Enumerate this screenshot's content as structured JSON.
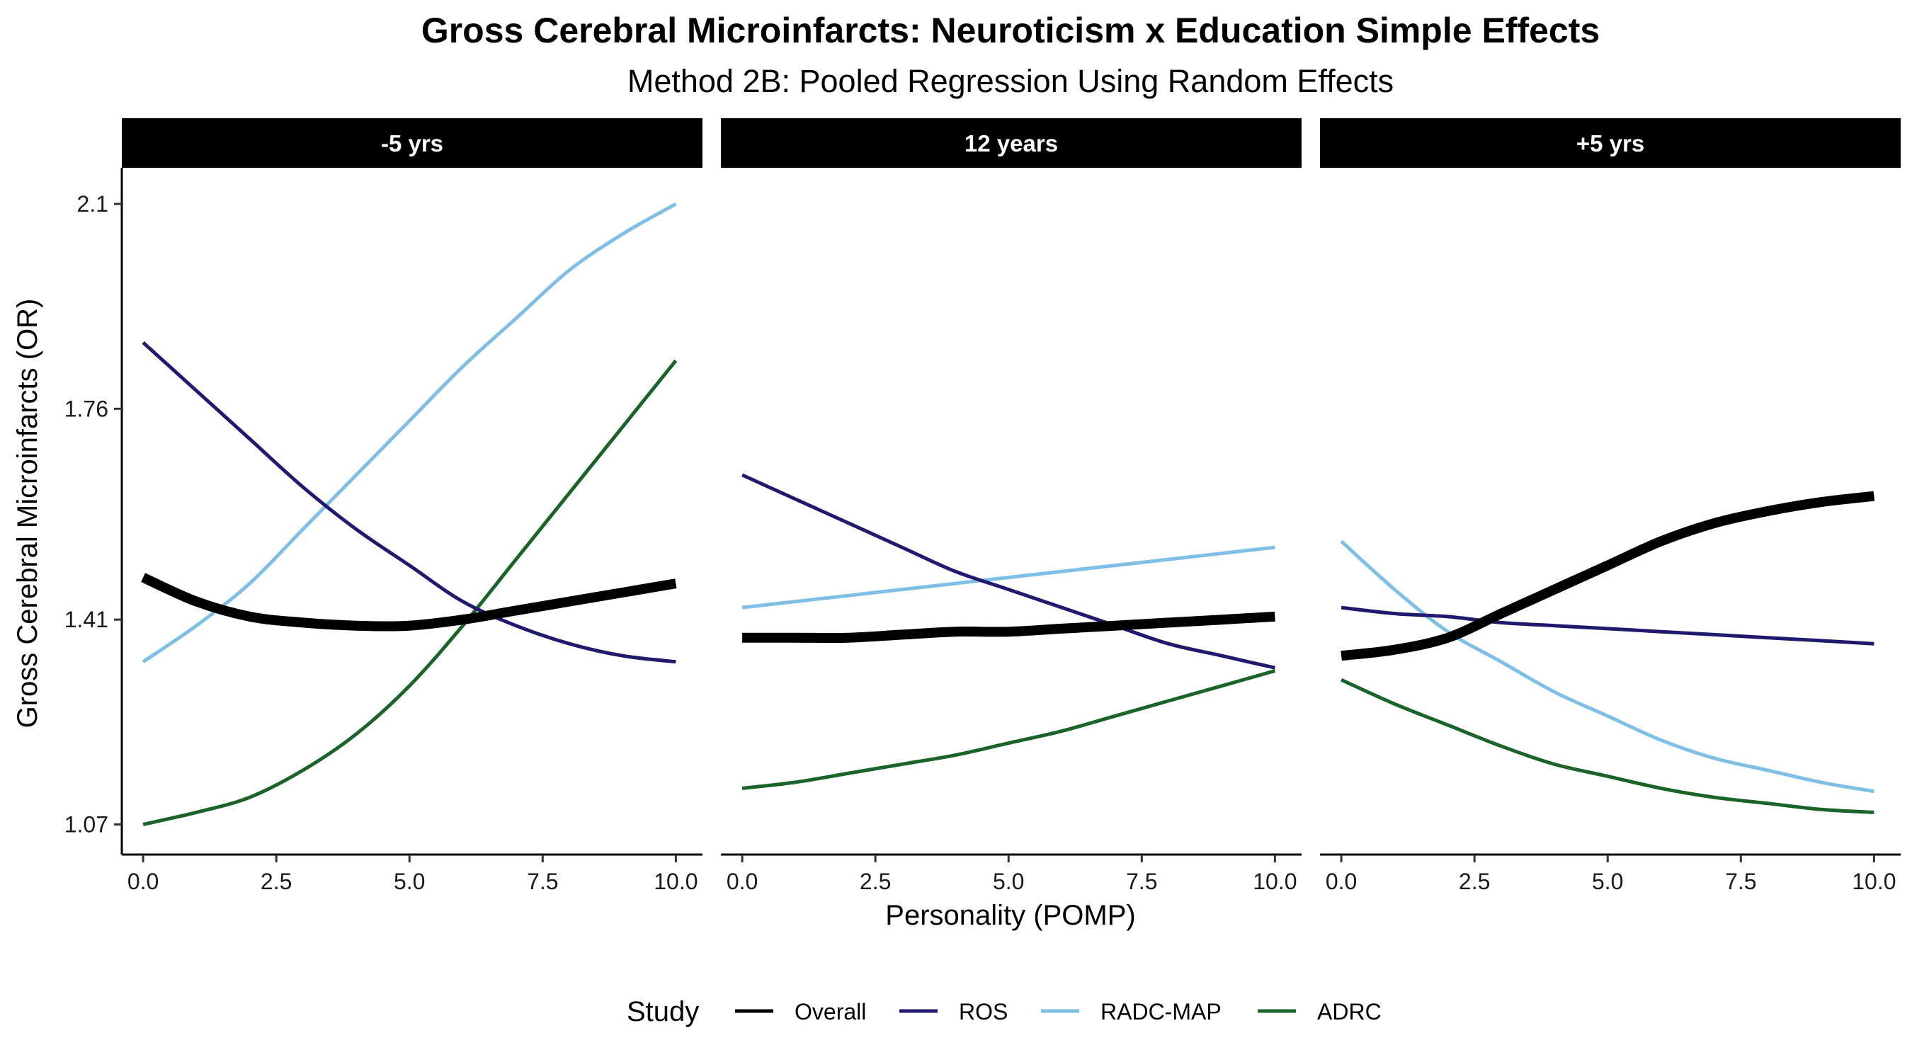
{
  "chart_data": {
    "type": "line",
    "title": "Gross Cerebral Microinfarcts: Neuroticism x Education Simple Effects",
    "subtitle": "Method 2B: Pooled Regression Using Random Effects",
    "xlabel": "Personality (POMP)",
    "ylabel": "Gross Cerebral Microinfarcts (OR)",
    "xlim": [
      -0.4,
      10.5
    ],
    "ylim": [
      1.02,
      2.16
    ],
    "x_ticks": [
      0,
      2.5,
      5,
      7.5,
      10
    ],
    "x_tick_labels": [
      "0.0",
      "2.5",
      "5.0",
      "7.5",
      "10.0"
    ],
    "y_ticks": [
      1.07,
      1.41,
      1.76,
      2.1
    ],
    "y_tick_labels": [
      "1.07",
      "1.41",
      "1.76",
      "2.1"
    ],
    "grid": false,
    "legend": {
      "title": "Study",
      "position": "bottom",
      "entries": [
        {
          "name": "Overall",
          "color": "#000000"
        },
        {
          "name": "ROS",
          "color": "#1f1a6e"
        },
        {
          "name": "RADC-MAP",
          "color": "#7fbfe6"
        },
        {
          "name": "ADRC",
          "color": "#1a6329"
        }
      ]
    },
    "x": [
      0,
      1,
      2,
      3,
      4,
      5,
      6,
      7,
      8,
      9,
      10
    ],
    "panels": [
      {
        "label": "-5 yrs",
        "series": [
          {
            "name": "Overall",
            "values": [
              1.48,
              1.44,
              1.415,
              1.405,
              1.4,
              1.4,
              1.41,
              1.425,
              1.44,
              1.455,
              1.47
            ]
          },
          {
            "name": "ROS",
            "values": [
              1.87,
              1.79,
              1.71,
              1.63,
              1.56,
              1.5,
              1.44,
              1.4,
              1.37,
              1.35,
              1.34
            ]
          },
          {
            "name": "RADC-MAP",
            "values": [
              1.34,
              1.4,
              1.47,
              1.56,
              1.65,
              1.74,
              1.83,
              1.91,
              1.99,
              2.05,
              2.1
            ]
          },
          {
            "name": "ADRC",
            "values": [
              1.07,
              1.09,
              1.115,
              1.16,
              1.22,
              1.3,
              1.4,
              1.51,
              1.62,
              1.73,
              1.84
            ]
          }
        ]
      },
      {
        "label": "12 years",
        "series": [
          {
            "name": "Overall",
            "values": [
              1.38,
              1.38,
              1.38,
              1.385,
              1.39,
              1.39,
              1.395,
              1.4,
              1.405,
              1.41,
              1.415
            ]
          },
          {
            "name": "ROS",
            "values": [
              1.65,
              1.61,
              1.57,
              1.53,
              1.49,
              1.46,
              1.43,
              1.4,
              1.37,
              1.35,
              1.33
            ]
          },
          {
            "name": "RADC-MAP",
            "values": [
              1.43,
              1.44,
              1.45,
              1.46,
              1.47,
              1.48,
              1.49,
              1.5,
              1.51,
              1.52,
              1.53
            ]
          },
          {
            "name": "ADRC",
            "values": [
              1.13,
              1.14,
              1.155,
              1.17,
              1.185,
              1.205,
              1.225,
              1.25,
              1.275,
              1.3,
              1.325
            ]
          }
        ]
      },
      {
        "label": "+5 yrs",
        "series": [
          {
            "name": "Overall",
            "values": [
              1.35,
              1.36,
              1.38,
              1.42,
              1.46,
              1.5,
              1.54,
              1.57,
              1.59,
              1.605,
              1.615
            ]
          },
          {
            "name": "ROS",
            "values": [
              1.43,
              1.42,
              1.415,
              1.405,
              1.4,
              1.395,
              1.39,
              1.385,
              1.38,
              1.375,
              1.37
            ]
          },
          {
            "name": "RADC-MAP",
            "values": [
              1.54,
              1.46,
              1.39,
              1.34,
              1.29,
              1.25,
              1.21,
              1.18,
              1.16,
              1.14,
              1.125
            ]
          },
          {
            "name": "ADRC",
            "values": [
              1.31,
              1.27,
              1.235,
              1.2,
              1.17,
              1.15,
              1.13,
              1.115,
              1.105,
              1.095,
              1.09
            ]
          }
        ]
      }
    ]
  }
}
